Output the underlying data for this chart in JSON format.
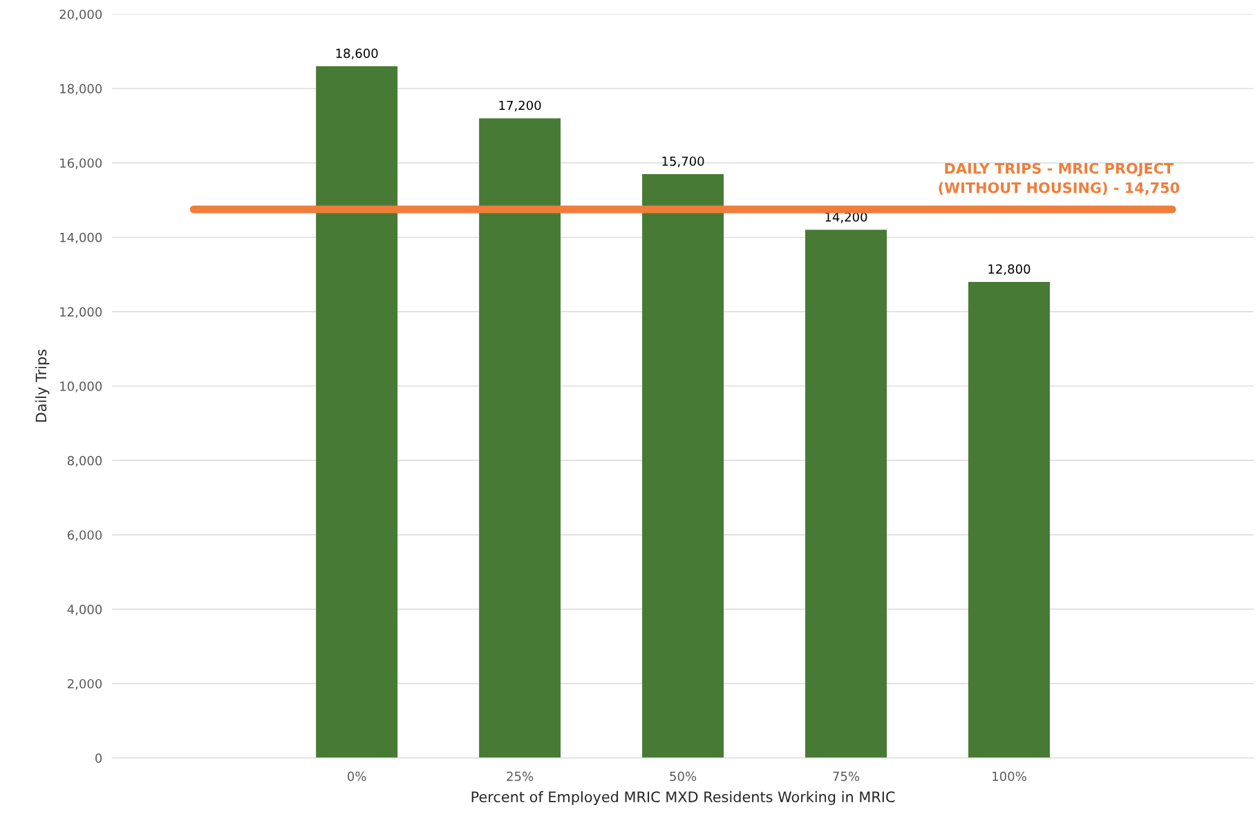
{
  "chart_data": {
    "type": "bar",
    "xlabel": "Percent of Employed MRIC MXD Residents Working in MRIC",
    "ylabel": "Daily Trips",
    "categories": [
      null,
      "0%",
      "25%",
      "50%",
      "75%",
      "100%",
      null
    ],
    "values": [
      null,
      18600,
      17200,
      15700,
      14200,
      12800,
      null
    ],
    "value_labels": [
      null,
      "18,600",
      "17,200",
      "15,700",
      "14,200",
      "12,800",
      null
    ],
    "color": "#477a35",
    "grid": "y",
    "legend": false,
    "ylim": [
      0,
      20000
    ],
    "yticks": [
      0,
      {
        "value": 2000,
        "label": "2,000"
      },
      {
        "value": 4000,
        "label": "4,000"
      },
      {
        "value": 6000,
        "label": "6,000"
      },
      {
        "value": 8000,
        "label": "8,000"
      },
      {
        "value": 10000,
        "label": "10,000"
      },
      {
        "value": 12000,
        "label": "12,000"
      },
      {
        "value": 14000,
        "label": "14,000"
      },
      {
        "value": 16000,
        "label": "16,000"
      },
      {
        "value": 18000,
        "label": "18,000"
      },
      {
        "value": 20000,
        "label": "20,000"
      }
    ],
    "ref_lines": [
      {
        "axis": "y",
        "value": 14750,
        "label": "DAILY TRIPS - MRIC PROJECT\n(WITHOUT HOUSING) - 14,750",
        "color": "#f07d3a",
        "line_style": "solid"
      }
    ]
  }
}
